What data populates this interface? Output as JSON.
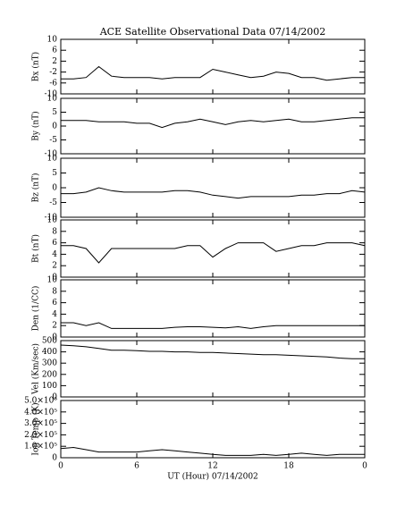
{
  "chart_data": [
    {
      "type": "line",
      "title": "ACE Satellite Observational Data   07/14/2002",
      "ylabel": "Bx (nT)",
      "color": "#000000",
      "x": [
        0,
        1,
        2,
        3,
        4,
        5,
        6,
        7,
        8,
        9,
        10,
        11,
        12,
        13,
        14,
        15,
        16,
        17,
        18,
        19,
        20,
        21,
        22,
        23,
        24
      ],
      "values": [
        -4.5,
        -4.5,
        -4,
        0,
        -3.5,
        -4,
        -4,
        -4,
        -4.5,
        -4,
        -4,
        -4,
        -1,
        -2,
        -3,
        -4,
        -3.5,
        -2,
        -2.5,
        -4,
        -4,
        -5,
        -4.5,
        -4,
        -4
      ],
      "xlim": [
        0,
        24
      ],
      "ylim": [
        -10,
        10
      ],
      "yticks": [
        10,
        6,
        2,
        -2,
        -6,
        -10
      ]
    },
    {
      "type": "line",
      "ylabel": "By (nT)",
      "color": "#000000",
      "x": [
        0,
        1,
        2,
        3,
        4,
        5,
        6,
        7,
        8,
        9,
        10,
        11,
        12,
        13,
        14,
        15,
        16,
        17,
        18,
        19,
        20,
        21,
        22,
        23,
        24
      ],
      "values": [
        2,
        2,
        2,
        1.5,
        1.5,
        1.5,
        1,
        1,
        -0.5,
        1,
        1.5,
        2.5,
        1.5,
        0.5,
        1.5,
        2,
        1.5,
        2,
        2.5,
        1.5,
        1.5,
        2,
        2.5,
        3,
        3
      ],
      "xlim": [
        0,
        24
      ],
      "ylim": [
        -10,
        10
      ],
      "yticks": [
        10,
        5,
        0,
        -5,
        -10
      ]
    },
    {
      "type": "line",
      "ylabel": "Bz (nT)",
      "color": "#000000",
      "x": [
        0,
        1,
        2,
        3,
        4,
        5,
        6,
        7,
        8,
        9,
        10,
        11,
        12,
        13,
        14,
        15,
        16,
        17,
        18,
        19,
        20,
        21,
        22,
        23,
        24
      ],
      "values": [
        -2,
        -2,
        -1.5,
        0,
        -1,
        -1.5,
        -1.5,
        -1.5,
        -1.5,
        -1,
        -1,
        -1.5,
        -2.5,
        -3,
        -3.5,
        -3,
        -3,
        -3,
        -3,
        -2.5,
        -2.5,
        -2,
        -2,
        -1,
        -1.5
      ],
      "xlim": [
        0,
        24
      ],
      "ylim": [
        -10,
        10
      ],
      "yticks": [
        10,
        5,
        0,
        -5,
        -10
      ]
    },
    {
      "type": "line",
      "ylabel": "Bt (nT)",
      "color": "#000000",
      "x": [
        0,
        1,
        2,
        3,
        4,
        5,
        6,
        7,
        8,
        9,
        10,
        11,
        12,
        13,
        14,
        15,
        16,
        17,
        18,
        19,
        20,
        21,
        22,
        23,
        24
      ],
      "values": [
        5.5,
        5.5,
        5,
        2.5,
        5,
        5,
        5,
        5,
        5,
        5,
        5.5,
        5.5,
        3.5,
        5,
        6,
        6,
        6,
        4.5,
        5,
        5.5,
        5.5,
        6,
        6,
        6,
        5.5
      ],
      "xlim": [
        0,
        24
      ],
      "ylim": [
        0,
        10
      ],
      "yticks": [
        10,
        8,
        6,
        4,
        2,
        0
      ]
    },
    {
      "type": "line",
      "ylabel": "Den (1/CC)",
      "color": "#000000",
      "x": [
        0,
        1,
        2,
        3,
        4,
        5,
        6,
        7,
        8,
        9,
        10,
        11,
        12,
        13,
        14,
        15,
        16,
        17,
        18,
        19,
        20,
        21,
        22,
        23,
        24
      ],
      "values": [
        2.5,
        2.5,
        2,
        2.5,
        1.5,
        1.5,
        1.5,
        1.5,
        1.5,
        1.7,
        1.8,
        1.8,
        1.7,
        1.6,
        1.8,
        1.5,
        1.8,
        2,
        2,
        2,
        2,
        2,
        2,
        2,
        2
      ],
      "xlim": [
        0,
        24
      ],
      "ylim": [
        0,
        10
      ],
      "yticks": [
        10,
        8,
        6,
        4,
        2,
        0
      ]
    },
    {
      "type": "line",
      "ylabel": "Vel (Km/sec)",
      "color": "#000000",
      "x": [
        0,
        1,
        2,
        3,
        4,
        5,
        6,
        7,
        8,
        9,
        10,
        11,
        12,
        13,
        14,
        15,
        16,
        17,
        18,
        19,
        20,
        21,
        22,
        23,
        24
      ],
      "values": [
        460,
        455,
        445,
        430,
        415,
        415,
        410,
        405,
        405,
        400,
        400,
        395,
        395,
        390,
        385,
        380,
        375,
        375,
        370,
        365,
        360,
        355,
        345,
        340,
        340
      ],
      "xlim": [
        0,
        24
      ],
      "ylim": [
        0,
        500
      ],
      "yticks": [
        500,
        400,
        300,
        200,
        100,
        0
      ]
    },
    {
      "type": "line",
      "ylabel": "Ion Temp (K)",
      "xlabel": "UT (Hour)  07/14/2002",
      "color": "#000000",
      "x": [
        0,
        1,
        2,
        3,
        4,
        5,
        6,
        7,
        8,
        9,
        10,
        11,
        12,
        13,
        14,
        15,
        16,
        17,
        18,
        19,
        20,
        21,
        22,
        23,
        24
      ],
      "values": [
        80000,
        90000,
        70000,
        50000,
        50000,
        50000,
        50000,
        60000,
        70000,
        60000,
        50000,
        40000,
        30000,
        20000,
        20000,
        20000,
        30000,
        20000,
        30000,
        40000,
        30000,
        20000,
        30000,
        30000,
        30000
      ],
      "xlim": [
        0,
        24
      ],
      "ylim": [
        0,
        500000
      ],
      "yticks": [
        {
          "value": 500000,
          "label": "5.0×10⁵"
        },
        {
          "value": 400000,
          "label": "4.0×10⁵"
        },
        {
          "value": 300000,
          "label": "3.0×10⁵"
        },
        {
          "value": 200000,
          "label": "2.0×10⁵"
        },
        {
          "value": 100000,
          "label": "1.0×10⁵"
        },
        0
      ],
      "xticks": [
        0,
        6,
        12,
        18,
        {
          "value": 24,
          "label": "0"
        }
      ]
    }
  ]
}
